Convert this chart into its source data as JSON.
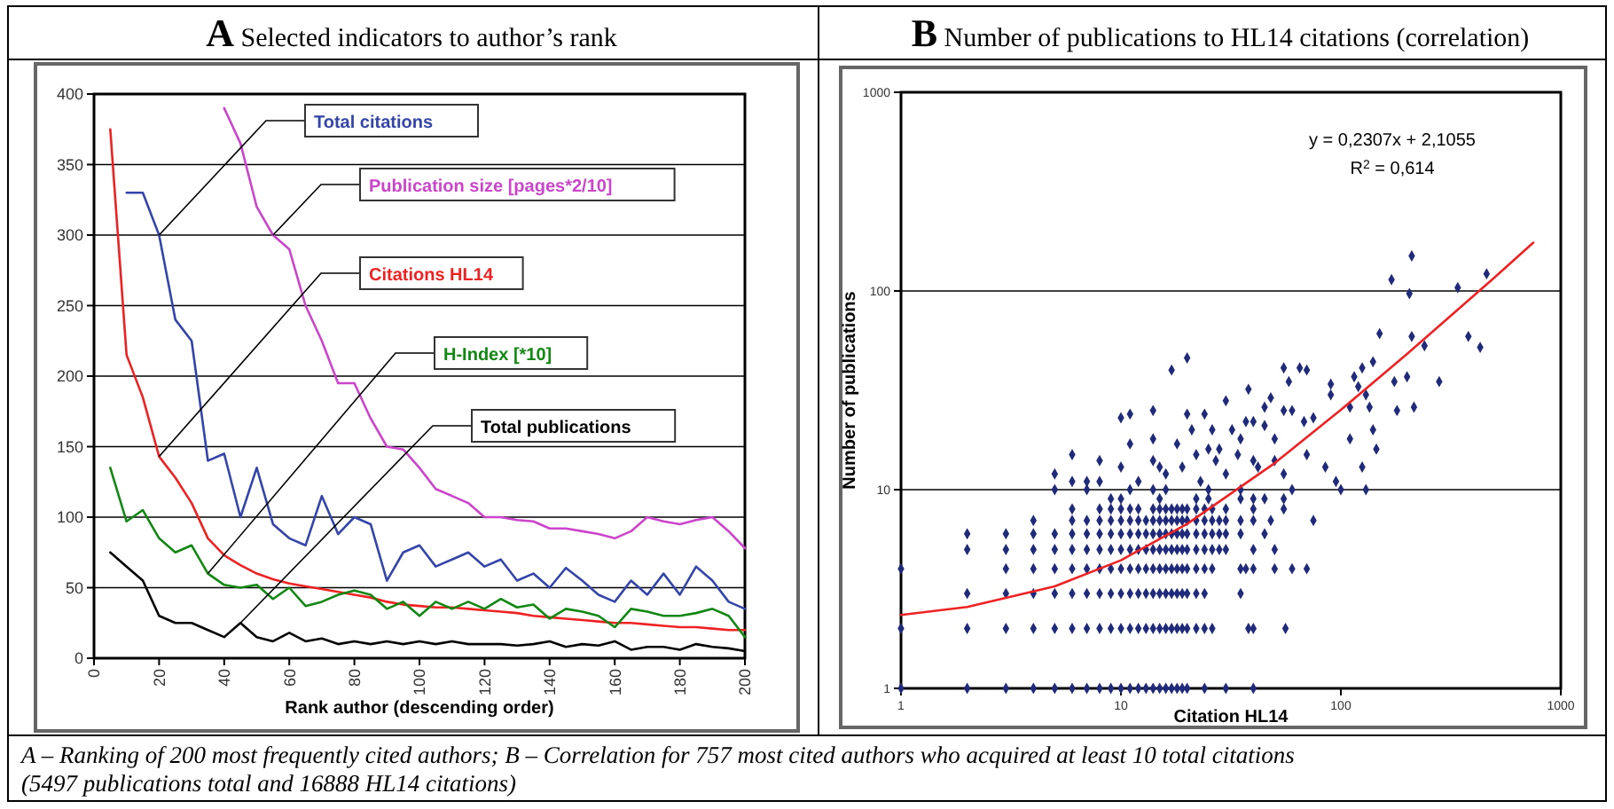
{
  "chart_data": [
    {
      "type": "line",
      "title": "A Selected indicators to author’s rank",
      "xlabel": "Rank author (descending order)",
      "xlim": [
        0,
        200
      ],
      "xticks": [
        0,
        20,
        40,
        60,
        80,
        100,
        120,
        140,
        160,
        180,
        200
      ],
      "ylim": [
        0,
        400
      ],
      "yticks": [
        0,
        50,
        100,
        150,
        200,
        250,
        300,
        350,
        400
      ],
      "grid": "y",
      "annotations": [
        "A – Ranking of 200 most frequently cited authors; B – Correlation for 757 most cited authors who acquired at least 10 total citations (5497 publications total and 16888 HL14 citations)"
      ],
      "x": [
        5,
        10,
        15,
        20,
        25,
        30,
        35,
        40,
        45,
        50,
        55,
        60,
        65,
        70,
        75,
        80,
        85,
        90,
        95,
        100,
        105,
        110,
        115,
        120,
        125,
        130,
        135,
        140,
        145,
        150,
        155,
        160,
        165,
        170,
        175,
        180,
        185,
        190,
        195,
        200
      ],
      "series": [
        {
          "name": "Total citations",
          "color": "#3344aa",
          "values": [
            null,
            330,
            330,
            300,
            240,
            225,
            140,
            145,
            100,
            135,
            95,
            85,
            80,
            115,
            88,
            100,
            95,
            55,
            75,
            80,
            65,
            70,
            75,
            65,
            70,
            55,
            60,
            50,
            64,
            55,
            45,
            40,
            55,
            45,
            60,
            45,
            65,
            55,
            40,
            35
          ]
        },
        {
          "name": "Publication size [pages*2/10]",
          "color": "#cc44cc",
          "values": [
            null,
            null,
            null,
            null,
            null,
            null,
            null,
            390,
            365,
            320,
            300,
            290,
            250,
            225,
            195,
            195,
            170,
            150,
            148,
            135,
            120,
            115,
            110,
            100,
            100,
            98,
            97,
            92,
            92,
            90,
            88,
            85,
            90,
            100,
            97,
            95,
            98,
            100,
            90,
            78
          ]
        },
        {
          "name": "Citations HL14",
          "color": "#ee2222",
          "values": [
            375,
            215,
            185,
            143,
            128,
            110,
            85,
            73,
            66,
            60,
            56,
            53,
            51,
            49,
            47,
            45,
            43,
            40,
            38,
            37,
            36,
            36,
            35,
            34,
            33,
            32,
            30,
            29,
            28,
            27,
            26,
            25,
            25,
            24,
            23,
            22,
            22,
            21,
            20,
            20
          ]
        },
        {
          "name": "H-Index [*10]",
          "color": "#118811",
          "values": [
            135,
            97,
            105,
            85,
            75,
            80,
            60,
            52,
            50,
            52,
            42,
            50,
            37,
            40,
            45,
            48,
            45,
            35,
            40,
            30,
            40,
            35,
            40,
            35,
            42,
            36,
            38,
            28,
            35,
            33,
            30,
            22,
            35,
            33,
            30,
            30,
            32,
            35,
            30,
            15
          ]
        },
        {
          "name": "Total publications",
          "color": "#000000",
          "values": [
            75,
            65,
            55,
            30,
            25,
            25,
            20,
            15,
            25,
            15,
            12,
            18,
            12,
            14,
            10,
            12,
            10,
            12,
            10,
            12,
            10,
            12,
            10,
            10,
            10,
            9,
            10,
            12,
            8,
            10,
            9,
            12,
            6,
            8,
            8,
            6,
            10,
            8,
            7,
            5
          ]
        }
      ]
    },
    {
      "type": "scatter",
      "title": "B Number of publications to HL14 citations (correlation)",
      "xlabel": "Citation HL14",
      "ylabel": "Number of publications",
      "log": "xy",
      "xlim": [
        1,
        1000
      ],
      "xticks": [
        1,
        10,
        100,
        1000
      ],
      "ylim": [
        1,
        1000
      ],
      "yticks": [
        1,
        10,
        100,
        1000
      ],
      "grid": "y",
      "annotations": [
        "y = 0,2307x + 2,1055",
        "R$^{2}$ = 0,614"
      ],
      "series": [
        {
          "color": "#1f2a7a",
          "marker": "diamond",
          "x": [
            1,
            2,
            3,
            4,
            5,
            6,
            7,
            8,
            9,
            10,
            11,
            12,
            13,
            14,
            15,
            16,
            17,
            18,
            19,
            20,
            24,
            30,
            40,
            1,
            2,
            3,
            4,
            5,
            6,
            7,
            8,
            9,
            10,
            11,
            12,
            13,
            14,
            15,
            16,
            17,
            18,
            19,
            20,
            22,
            24,
            26,
            38,
            40,
            56,
            2,
            3,
            4,
            5,
            6,
            7,
            8,
            9,
            10,
            11,
            12,
            13,
            14,
            15,
            16,
            17,
            18,
            19,
            20,
            22,
            24,
            35,
            1,
            3,
            4,
            5,
            6,
            7,
            8,
            9,
            10,
            11,
            12,
            13,
            14,
            15,
            16,
            17,
            18,
            19,
            20,
            22,
            24,
            26,
            35,
            37,
            40,
            50,
            60,
            70,
            2,
            3,
            4,
            5,
            6,
            7,
            8,
            9,
            10,
            11,
            12,
            13,
            14,
            15,
            16,
            17,
            18,
            19,
            20,
            22,
            24,
            26,
            28,
            30,
            40,
            50,
            2,
            3,
            4,
            5,
            6,
            7,
            8,
            9,
            10,
            11,
            12,
            13,
            14,
            15,
            16,
            17,
            18,
            19,
            20,
            22,
            24,
            26,
            28,
            30,
            35,
            45,
            4,
            6,
            7,
            8,
            9,
            10,
            11,
            12,
            13,
            14,
            15,
            16,
            17,
            18,
            19,
            20,
            22,
            24,
            26,
            28,
            30,
            35,
            40,
            48,
            75,
            6,
            8,
            9,
            10,
            11,
            12,
            14,
            15,
            16,
            17,
            18,
            19,
            20,
            22,
            24,
            26,
            30,
            40,
            55,
            9,
            10,
            15,
            22,
            25,
            35,
            40,
            45,
            55,
            5,
            7,
            11,
            14,
            16,
            25,
            35,
            60,
            100,
            130,
            5,
            6,
            6,
            7,
            8,
            8,
            10,
            10,
            11,
            11,
            12,
            14,
            14,
            14,
            15,
            16,
            17,
            18,
            19,
            20,
            20,
            21,
            22,
            23,
            24,
            25,
            26,
            27,
            28,
            30,
            30,
            32,
            34,
            35,
            37,
            38,
            40,
            40,
            42,
            45,
            45,
            48,
            50,
            50,
            55,
            55,
            55,
            58,
            60,
            65,
            68,
            70,
            70,
            75,
            85,
            90,
            90,
            95,
            110,
            110,
            115,
            120,
            125,
            125,
            130,
            135,
            140,
            140,
            145,
            150,
            170,
            175,
            180,
            200,
            205,
            210,
            210,
            215,
            240,
            280,
            340,
            380,
            430,
            460
          ],
          "values": [
            1,
            1,
            1,
            1,
            1,
            1,
            1,
            1,
            1,
            1,
            1,
            1,
            1,
            1,
            1,
            1,
            1,
            1,
            1,
            1,
            1,
            1,
            1,
            2,
            2,
            2,
            2,
            2,
            2,
            2,
            2,
            2,
            2,
            2,
            2,
            2,
            2,
            2,
            2,
            2,
            2,
            2,
            2,
            2,
            2,
            2,
            2,
            2,
            2,
            3,
            3,
            3,
            3,
            3,
            3,
            3,
            3,
            3,
            3,
            3,
            3,
            3,
            3,
            3,
            3,
            3,
            3,
            3,
            3,
            3,
            3,
            4,
            4,
            4,
            4,
            4,
            4,
            4,
            4,
            4,
            4,
            4,
            4,
            4,
            4,
            4,
            4,
            4,
            4,
            4,
            4,
            4,
            4,
            4,
            4,
            4,
            4,
            4,
            4,
            5,
            5,
            5,
            5,
            5,
            5,
            5,
            5,
            5,
            5,
            5,
            5,
            5,
            5,
            5,
            5,
            5,
            5,
            5,
            5,
            5,
            5,
            5,
            5,
            5,
            5,
            6,
            6,
            6,
            6,
            6,
            6,
            6,
            6,
            6,
            6,
            6,
            6,
            6,
            6,
            6,
            6,
            6,
            6,
            6,
            6,
            6,
            6,
            6,
            6,
            6,
            6,
            7,
            7,
            7,
            7,
            7,
            7,
            7,
            7,
            7,
            7,
            7,
            7,
            7,
            7,
            7,
            7,
            7,
            7,
            7,
            7,
            7,
            7,
            7,
            7,
            7,
            8,
            8,
            8,
            8,
            8,
            8,
            8,
            8,
            8,
            8,
            8,
            8,
            8,
            8,
            8,
            8,
            8,
            8,
            8,
            9,
            9,
            9,
            9,
            9,
            9,
            9,
            9,
            9,
            10,
            10,
            10,
            10,
            10,
            10,
            10,
            10,
            10,
            10,
            12,
            15,
            11,
            11,
            11,
            14,
            13,
            23,
            24,
            17,
            11,
            18,
            25,
            14,
            13,
            12,
            40,
            17,
            13,
            46,
            24,
            20,
            15,
            11,
            24,
            16,
            20,
            14,
            16,
            28,
            12,
            20,
            15,
            18,
            22,
            32,
            22,
            14,
            13,
            21,
            26,
            29,
            18,
            14,
            41,
            25,
            12,
            35,
            25,
            41,
            22,
            40,
            15,
            23,
            13,
            34,
            30,
            11,
            26,
            18,
            37,
            33,
            41,
            13,
            30,
            26,
            44,
            20,
            16,
            61,
            114,
            35,
            25,
            37,
            97,
            59,
            150,
            26,
            53,
            35,
            104,
            59,
            52,
            122
          ]
        },
        {
          "type": "line",
          "color": "#ee2222",
          "marker": "none",
          "x": [
            1,
            2,
            5,
            10,
            20,
            50,
            100,
            200,
            500,
            750
          ],
          "values": [
            2.34,
            2.57,
            3.26,
            4.41,
            6.72,
            13.6,
            25.2,
            48.2,
            117,
            175
          ]
        }
      ]
    }
  ]
}
